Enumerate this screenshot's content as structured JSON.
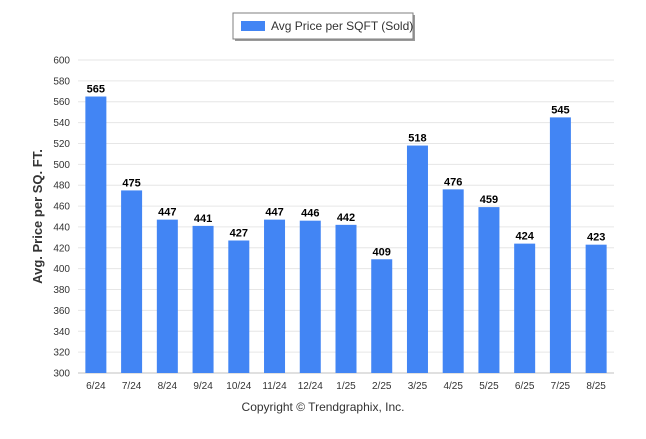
{
  "chart_data": {
    "type": "bar",
    "categories": [
      "6/24",
      "7/24",
      "8/24",
      "9/24",
      "10/24",
      "11/24",
      "12/24",
      "1/25",
      "2/25",
      "3/25",
      "4/25",
      "5/25",
      "6/25",
      "7/25",
      "8/25"
    ],
    "series": [
      {
        "name": "Avg Price per SQFT (Sold)",
        "values": [
          565,
          475,
          447,
          441,
          427,
          447,
          446,
          442,
          409,
          518,
          476,
          459,
          424,
          545,
          423
        ]
      }
    ],
    "ylabel": "Avg. Price per SQ. FT.",
    "xlabel": "",
    "ylim": [
      300,
      600
    ],
    "yticks": [
      300,
      320,
      340,
      360,
      380,
      400,
      420,
      440,
      460,
      480,
      500,
      520,
      540,
      560,
      580,
      600
    ],
    "grid": true,
    "legend_position": "top-center",
    "bar_color": "#4285f4"
  },
  "footer": {
    "copyright": "Copyright © Trendgraphix, Inc."
  }
}
